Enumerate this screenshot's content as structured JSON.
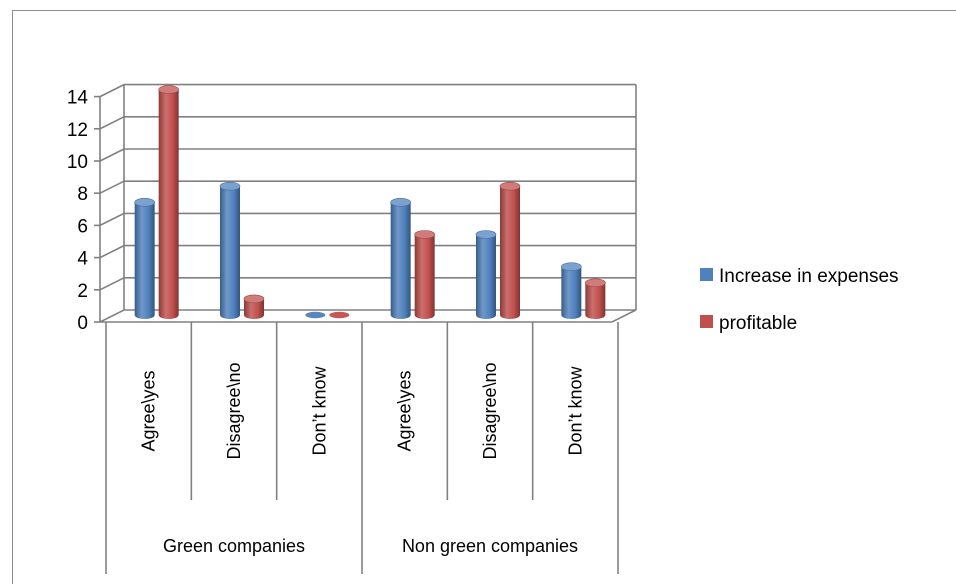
{
  "chart_data": {
    "type": "bar",
    "style": "3d-clustered-column",
    "categories": [
      "Agree\\yes",
      "Disagree\\no",
      "Don’t know",
      "Agree\\yes",
      "Disagree\\no",
      "Don’t know"
    ],
    "groups": [
      {
        "label": "Green companies",
        "categories": 3
      },
      {
        "label": "Non green companies",
        "categories": 3
      }
    ],
    "series": [
      {
        "name": "Increase in expenses",
        "color": "#4F81BD",
        "values": [
          7,
          8,
          0,
          7,
          5,
          3
        ]
      },
      {
        "name": "profitable",
        "color": "#C0504D",
        "values": [
          14,
          1,
          0,
          5,
          8,
          2
        ]
      }
    ],
    "y_ticks": [
      0,
      2,
      4,
      6,
      8,
      10,
      12,
      14
    ],
    "ylim": [
      0,
      14
    ],
    "grid": true,
    "legend_position": "right"
  }
}
